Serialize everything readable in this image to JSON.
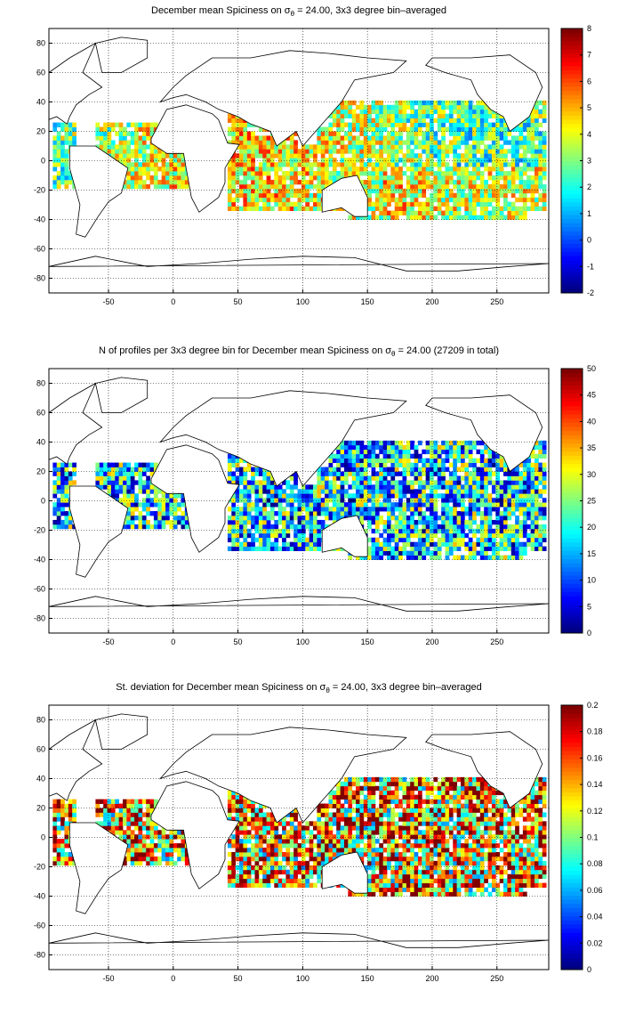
{
  "panels": [
    {
      "title_pre": "December mean Spiciness on σ",
      "title_sub": "θ",
      "title_post": " = 24.00, 3x3 degree bin–averaged",
      "colorbar": {
        "ticks": [
          "8",
          "7",
          "6",
          "5",
          "4",
          "3",
          "2",
          "1",
          "0",
          "-1",
          "-2"
        ],
        "min": -2,
        "max": 8
      },
      "pattern_seed": 11,
      "pattern_bias": 0.55,
      "pattern_spread": 0.22
    },
    {
      "title_pre": "N of profiles per 3x3 degree bin for December mean Spiciness on σ",
      "title_sub": "θ",
      "title_post": " = 24.00 (27209 in total)",
      "colorbar": {
        "ticks": [
          "50",
          "45",
          "40",
          "35",
          "30",
          "25",
          "20",
          "15",
          "10",
          "5",
          "0"
        ],
        "min": 0,
        "max": 50
      },
      "pattern_seed": 37,
      "pattern_bias": 0.35,
      "pattern_spread": 0.35
    },
    {
      "title_pre": "St. deviation for December mean Spiciness on σ",
      "title_sub": "θ",
      "title_post": " = 24.00, 3x3 degree bin–averaged",
      "colorbar": {
        "ticks": [
          "0.2",
          "0.18",
          "0.16",
          "0.14",
          "0.12",
          "0.1",
          "0.08",
          "0.06",
          "0.04",
          "0.02",
          "0"
        ],
        "min": 0,
        "max": 0.2
      },
      "pattern_seed": 73,
      "pattern_bias": 0.7,
      "pattern_spread": 0.45
    }
  ],
  "axes": {
    "x_ticks": [
      "-50",
      "0",
      "50",
      "100",
      "150",
      "200",
      "250"
    ],
    "x_values": [
      -50,
      0,
      50,
      100,
      150,
      200,
      250
    ],
    "xlim": [
      -96,
      290
    ],
    "y_ticks": [
      "80",
      "60",
      "40",
      "20",
      "0",
      "-20",
      "-40",
      "-60",
      "-80"
    ],
    "y_values": [
      80,
      60,
      40,
      20,
      0,
      -20,
      -40,
      -60,
      -80
    ],
    "ylim": [
      -90,
      90
    ]
  }
}
